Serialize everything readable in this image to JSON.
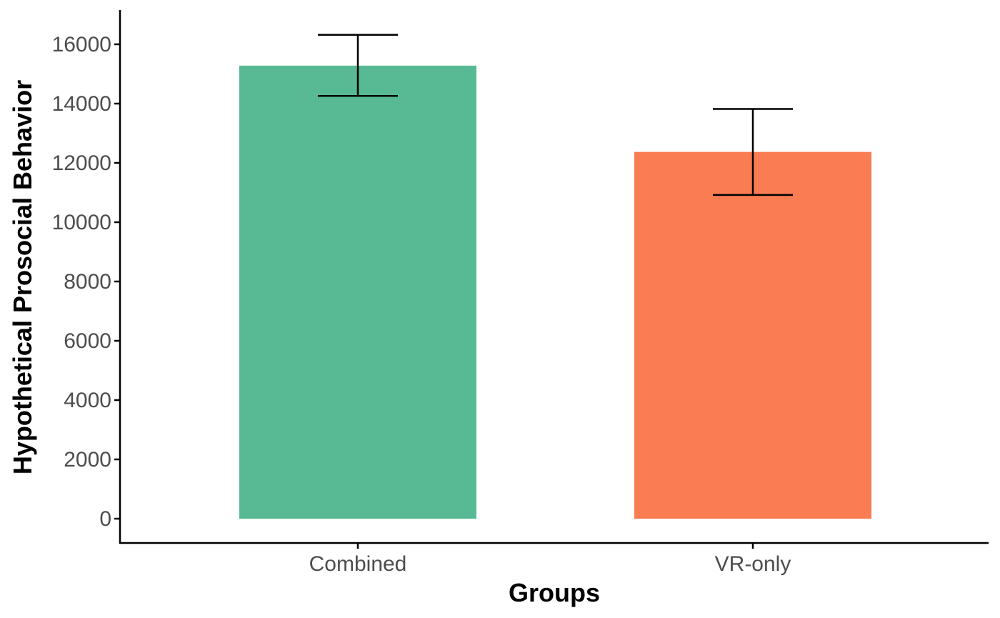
{
  "chart_data": {
    "type": "bar",
    "title": "",
    "xlabel": "Groups",
    "ylabel": "Hypothetical Prosocial Behavior",
    "categories": [
      "Combined",
      "VR-only"
    ],
    "values": [
      15280,
      12370
    ],
    "error_bars": [
      {
        "lower": 14260,
        "upper": 16320
      },
      {
        "lower": 10920,
        "upper": 13820
      }
    ],
    "colors": [
      "#58BA94",
      "#F97C53"
    ],
    "ylim": [
      0,
      16000
    ],
    "yticks": [
      0,
      2000,
      4000,
      6000,
      8000,
      10000,
      12000,
      14000,
      16000
    ],
    "ytick_labels": [
      "0",
      "2000",
      "4000",
      "6000",
      "8000",
      "10000",
      "12000",
      "14000",
      "16000"
    ],
    "grid": false,
    "legend": "none"
  }
}
